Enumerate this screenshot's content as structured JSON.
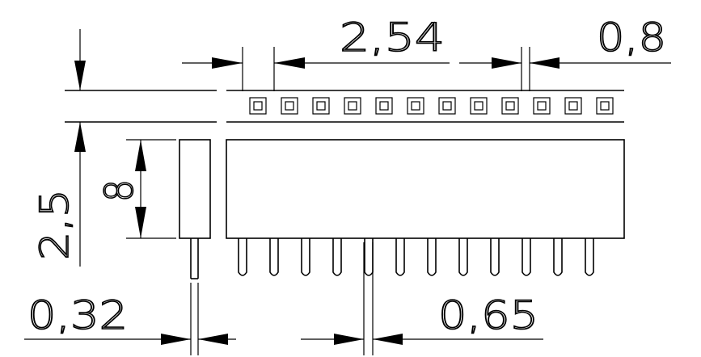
{
  "dimensions": {
    "pitch": "2,54",
    "pad_width": "0,8",
    "row_height": "2,5",
    "body_height": "8",
    "pin_width": "0,32",
    "pin_spacing": "0,65"
  },
  "pad_count": 12,
  "pin_count": 12
}
